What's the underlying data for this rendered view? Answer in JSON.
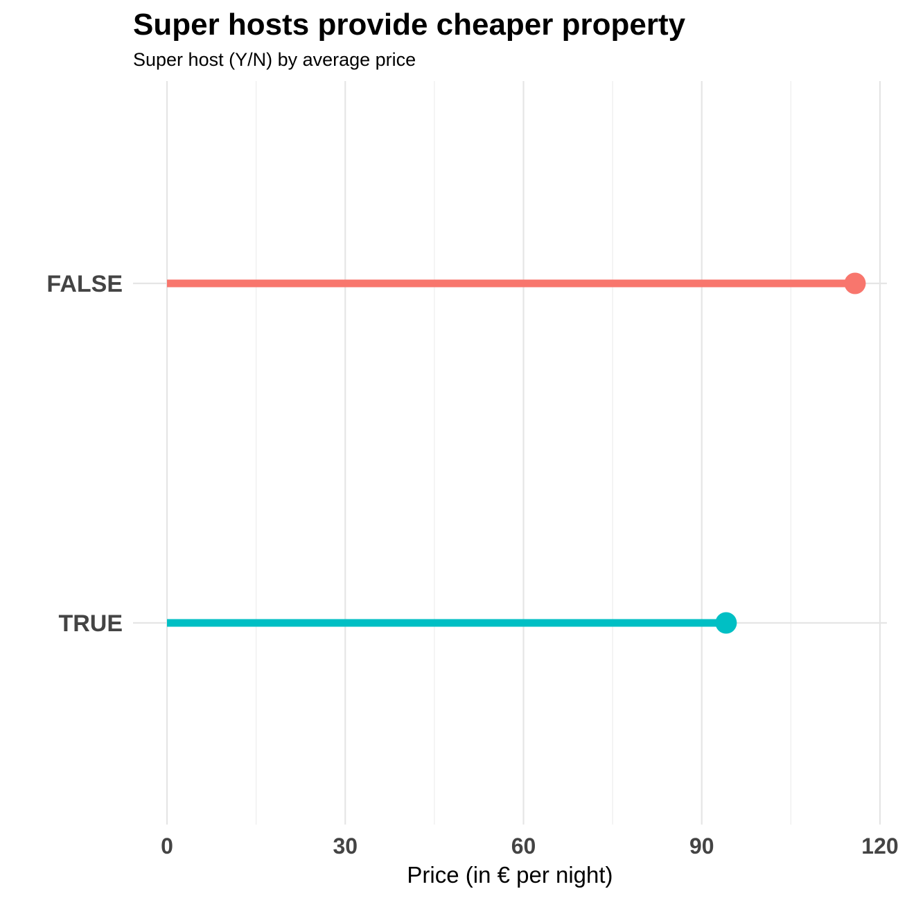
{
  "chart_data": {
    "type": "lollipop",
    "title": "Super hosts provide cheaper property",
    "subtitle": "Super host (Y/N) by average price",
    "xlabel": "Price (in € per night)",
    "ylabel": "",
    "xlim": [
      0,
      120
    ],
    "x_ticks": [
      0,
      30,
      60,
      90,
      120
    ],
    "x_minor_ticks": [
      15,
      45,
      75,
      105
    ],
    "grid": true,
    "legend": "none",
    "categories": [
      "FALSE",
      "TRUE"
    ],
    "values": [
      115.8,
      94.1
    ],
    "colors": [
      "#F8766D",
      "#00BFC4"
    ]
  }
}
